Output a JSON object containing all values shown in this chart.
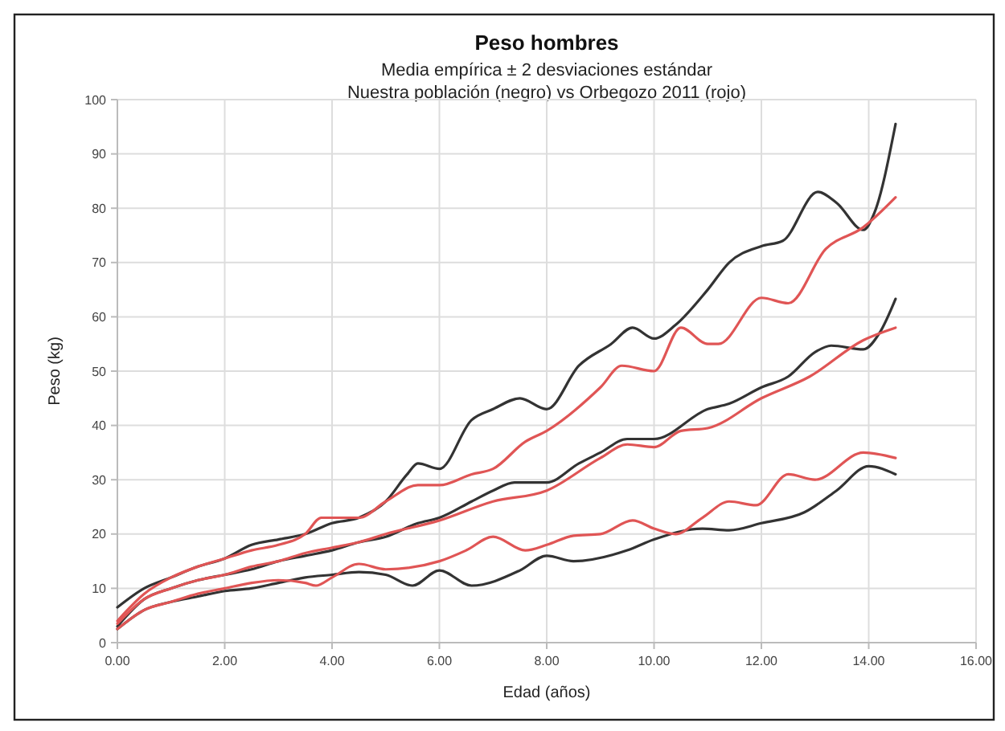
{
  "chart_data": {
    "type": "line",
    "title": "Peso hombres",
    "subtitle": "Media empírica ± 2 desviaciones estándar\nNuestra población (negro) vs Orbegozo 2011 (rojo)",
    "xlabel": "Edad (años)",
    "ylabel": "Peso (kg)",
    "xlim": [
      0,
      16
    ],
    "xticks": [
      {
        "value": 0,
        "label": "0.00"
      },
      {
        "value": 2,
        "label": "2.00"
      },
      {
        "value": 4,
        "label": "4.00"
      },
      {
        "value": 6,
        "label": "6.00"
      },
      {
        "value": 8,
        "label": "8.00"
      },
      {
        "value": 10,
        "label": "10.00"
      },
      {
        "value": 12,
        "label": "12.00"
      },
      {
        "value": 14,
        "label": "14.00"
      },
      {
        "value": 16,
        "label": "16.00"
      }
    ],
    "ylim": [
      0,
      100
    ],
    "yticks": [
      0,
      10,
      20,
      30,
      40,
      50,
      60,
      70,
      80,
      90,
      100
    ],
    "grid": true,
    "marker": "none",
    "line_style": "solid",
    "series": [
      {
        "color": "#333333",
        "x": [
          0,
          0.5,
          1,
          1.5,
          2,
          2.5,
          3,
          3.5,
          4,
          4.5,
          5,
          5.4,
          5.6,
          6,
          6.6,
          7,
          7.5,
          8,
          8.6,
          9.2,
          9.6,
          10,
          10.4,
          11,
          11.4,
          12,
          12.4,
          13.05,
          13.4,
          13.9,
          14.1,
          14.5
        ],
        "values": [
          6.5,
          10,
          12,
          14,
          15.5,
          18,
          19,
          20,
          22,
          23,
          26,
          31,
          33,
          32,
          41,
          43,
          45,
          43,
          51,
          55,
          58,
          56,
          58.5,
          65,
          70,
          73,
          74,
          83,
          81,
          76,
          79,
          95.5
        ]
      },
      {
        "color": "#e05555",
        "x": [
          0,
          0.5,
          1,
          1.5,
          2,
          2.5,
          3,
          3.5,
          3.8,
          4.2,
          4.5,
          5,
          5.6,
          6,
          6.6,
          7,
          7.6,
          8,
          9,
          9.4,
          10,
          10.5,
          11,
          11.2,
          12,
          12.5,
          13.2,
          13.9,
          14.5
        ],
        "values": [
          4,
          9,
          12,
          14,
          15.5,
          17,
          18,
          20,
          23,
          23,
          23,
          26,
          29,
          29,
          31,
          32,
          37,
          39,
          47,
          51,
          50,
          58,
          55,
          55,
          63.5,
          62.5,
          72.5,
          76.5,
          82
        ]
      },
      {
        "color": "#333333",
        "x": [
          0,
          0.5,
          1,
          1.5,
          2,
          2.5,
          3,
          3.5,
          4,
          4.5,
          5,
          5.6,
          6,
          6.6,
          7,
          7.4,
          8,
          8.6,
          9,
          9.5,
          10,
          11,
          11.4,
          12,
          12.5,
          13,
          13.3,
          13.9,
          14.2,
          14.5
        ],
        "values": [
          3,
          8,
          10,
          11.5,
          12.5,
          13.5,
          15,
          16,
          17,
          18.5,
          19.5,
          22,
          23,
          26,
          28,
          29.5,
          29.5,
          33,
          35,
          37.5,
          37.5,
          43,
          44,
          47,
          49,
          53.5,
          54.7,
          54,
          57,
          63.3
        ]
      },
      {
        "color": "#e05555",
        "x": [
          0,
          0.5,
          1,
          1.5,
          2,
          2.5,
          3,
          3.5,
          4,
          4.5,
          5,
          6,
          7,
          8,
          9,
          9.5,
          10,
          10.5,
          11,
          12,
          12.9,
          13.9,
          14.5
        ],
        "values": [
          3.5,
          8,
          10,
          11.5,
          12.5,
          14,
          15,
          16.5,
          17.5,
          18.5,
          20,
          22.5,
          26,
          28,
          34,
          36.5,
          36,
          39,
          39.5,
          45,
          49,
          55.7,
          58
        ]
      },
      {
        "color": "#333333",
        "x": [
          0,
          0.5,
          1,
          1.5,
          2,
          2.5,
          3,
          3.5,
          4,
          4.5,
          5,
          5.5,
          6,
          6.6,
          7.5,
          8,
          8.5,
          9.5,
          10,
          10.9,
          11.4,
          12,
          12.8,
          13.4,
          14,
          14.5
        ],
        "values": [
          2.5,
          6,
          7.5,
          8.5,
          9.5,
          10,
          11,
          12,
          12.5,
          13,
          12.5,
          10.5,
          13.3,
          10.5,
          13.3,
          16,
          15,
          17,
          19,
          21,
          20.7,
          22,
          24,
          28,
          32.5,
          31
        ]
      },
      {
        "color": "#e05555",
        "x": [
          0,
          0.5,
          1,
          1.5,
          2,
          2.5,
          3,
          3.5,
          3.7,
          4,
          4.5,
          5,
          6,
          6.5,
          7,
          7.6,
          8,
          8.5,
          9,
          9.6,
          10,
          10.4,
          10.9,
          11.4,
          11.9,
          12.5,
          13,
          13.9,
          14.5
        ],
        "values": [
          2.5,
          6,
          7.5,
          9,
          10,
          11,
          11.5,
          11,
          10.5,
          12,
          14.5,
          13.5,
          15,
          17,
          19.5,
          17,
          18,
          19.7,
          20,
          22.5,
          21,
          20,
          23,
          26,
          25.3,
          31,
          30,
          35,
          34
        ]
      }
    ]
  }
}
